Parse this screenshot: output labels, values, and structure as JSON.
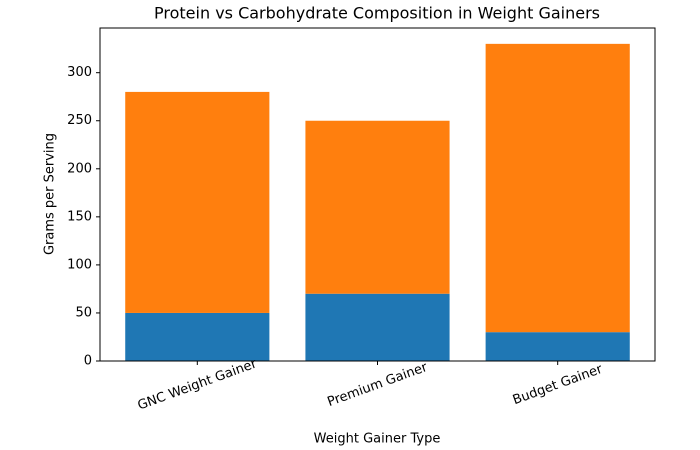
{
  "chart_data": {
    "type": "stacked-bar",
    "title": "Protein vs Carbohydrate Composition in Weight Gainers",
    "x_label": "Weight Gainer Type",
    "y_label": "Grams per Serving",
    "categories": [
      "GNC Weight Gainer",
      "Premium Gainer",
      "Budget Gainer"
    ],
    "series": [
      {
        "color": "#1f77b4",
        "values": [
          50,
          70,
          30
        ]
      },
      {
        "color": "#ff7f0e",
        "values": [
          230,
          180,
          300
        ]
      }
    ],
    "ylim": [
      0,
      346.5
    ],
    "yticks": [
      0,
      50,
      100,
      150,
      200,
      250,
      300
    ],
    "grid": false
  }
}
